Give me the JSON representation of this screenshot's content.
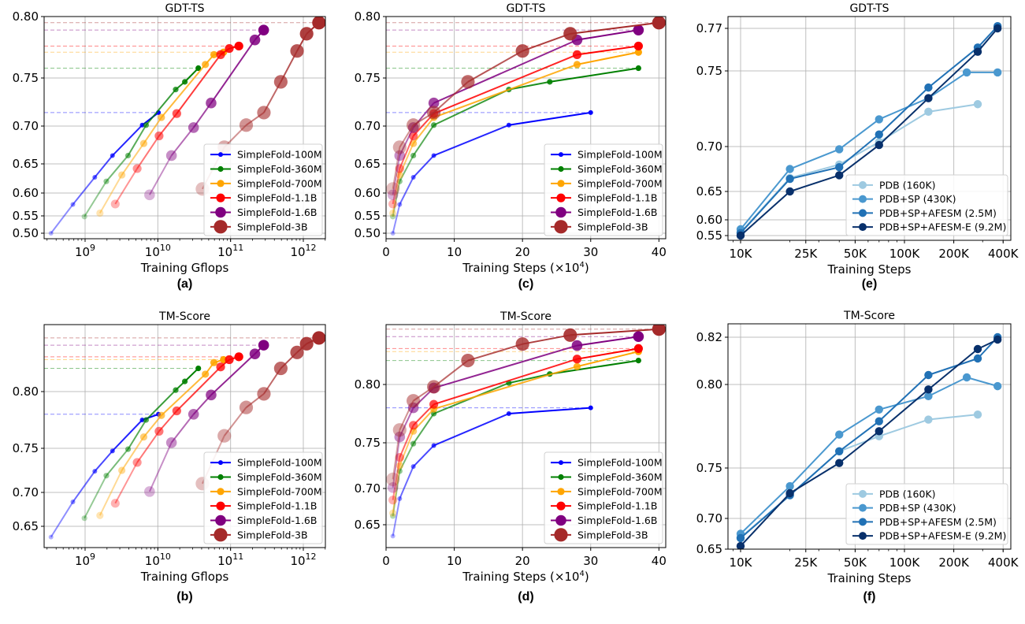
{
  "chart_data": [
    {
      "id": "a",
      "type": "line",
      "title": "GDT-TS",
      "xlabel": "Training Gflops",
      "ylabel": "",
      "panel_label": "(a)",
      "xscale": "log",
      "xlim": [
        250000000.0,
        2000000000000.0
      ],
      "xticks": [
        1000000000.0,
        10000000000.0,
        100000000000.0,
        1000000000000.0
      ],
      "xtick_labels": [
        "10^9",
        "10^10",
        "10^11",
        "10^12"
      ],
      "yticks": [
        0.5,
        0.55,
        0.6,
        0.65,
        0.7,
        0.75,
        0.8
      ],
      "ytick_labels": [
        "0.50",
        "0.55",
        "0.60",
        "0.65",
        "0.70",
        "0.75",
        "0.80"
      ],
      "ylim": [
        0.49,
        0.8
      ],
      "grid": true,
      "legend": "bottom-right",
      "reference_lines": "dashed horizontal line at each series' final value",
      "series": [
        {
          "name": "SimpleFold-100M",
          "color": "#0000ff",
          "x": [
            340000000.0,
            680000000.0,
            1360000000.0,
            2380000000.0,
            6100000000.0,
            10200000000.0
          ],
          "y": [
            0.5,
            0.575,
            0.627,
            0.661,
            0.701,
            0.714
          ]
        },
        {
          "name": "SimpleFold-360M",
          "color": "#008000",
          "x": [
            980000000.0,
            1960000000.0,
            3900000000.0,
            6900000000.0,
            17600000000.0,
            23500000000.0,
            36000000000.0
          ],
          "y": [
            0.548,
            0.62,
            0.661,
            0.701,
            0.738,
            0.746,
            0.758
          ]
        },
        {
          "name": "SimpleFold-700M",
          "color": "#ffa500",
          "x": [
            1600000000.0,
            3200000000.0,
            6400000000.0,
            11200000000.0,
            45000000000.0,
            59000000000.0,
            80000000000.0
          ],
          "y": [
            0.556,
            0.631,
            0.677,
            0.709,
            0.761,
            0.769,
            0.771
          ]
        },
        {
          "name": "SimpleFold-1.1B",
          "color": "#ff0000",
          "x": [
            2600000000.0,
            5200000000.0,
            10400000000.0,
            18200000000.0,
            73000000000.0,
            96000000000.0,
            130000000000.0
          ],
          "y": [
            0.576,
            0.642,
            0.687,
            0.713,
            0.769,
            0.774,
            0.776
          ]
        },
        {
          "name": "SimpleFold-1.6B",
          "color": "#800080",
          "x": [
            7700000000.0,
            15400000000.0,
            31000000000.0,
            54000000000.0,
            216000000000.0,
            285000000000.0
          ],
          "y": [
            0.596,
            0.661,
            0.698,
            0.724,
            0.781,
            0.789
          ]
        },
        {
          "name": "SimpleFold-3B",
          "color": "#a52a2a",
          "x": [
            41000000000.0,
            82000000000.0,
            164000000000.0,
            287000000000.0,
            490000000000.0,
            820000000000.0,
            1110000000000.0,
            1640000000000.0
          ],
          "y": [
            0.607,
            0.672,
            0.701,
            0.714,
            0.746,
            0.772,
            0.786,
            0.795
          ]
        }
      ]
    },
    {
      "id": "c",
      "type": "line",
      "title": "GDT-TS",
      "xlabel": "Training Steps (×10",
      "xlabel_sup": "4",
      "xlabel_tail": ")",
      "ylabel": "",
      "panel_label": "(c)",
      "xscale": "linear",
      "xlim": [
        0,
        41
      ],
      "xticks": [
        0,
        10,
        20,
        30,
        40
      ],
      "xtick_labels": [
        "0",
        "10",
        "20",
        "30",
        "40"
      ],
      "yticks": [
        0.5,
        0.55,
        0.6,
        0.65,
        0.7,
        0.75,
        0.8
      ],
      "ytick_labels": [
        "0.50",
        "0.55",
        "0.60",
        "0.65",
        "0.70",
        "0.75",
        "0.80"
      ],
      "ylim": [
        0.49,
        0.8
      ],
      "grid": true,
      "legend": "bottom-right",
      "series": [
        {
          "name": "SimpleFold-100M",
          "color": "#0000ff",
          "x": [
            1,
            2,
            4,
            7,
            18,
            30
          ],
          "y": [
            0.5,
            0.575,
            0.627,
            0.661,
            0.701,
            0.714
          ]
        },
        {
          "name": "SimpleFold-360M",
          "color": "#008000",
          "x": [
            1,
            2,
            4,
            7,
            18,
            24,
            37
          ],
          "y": [
            0.548,
            0.62,
            0.661,
            0.701,
            0.738,
            0.746,
            0.758
          ]
        },
        {
          "name": "SimpleFold-700M",
          "color": "#ffa500",
          "x": [
            1,
            2,
            4,
            7,
            28,
            37
          ],
          "y": [
            0.556,
            0.631,
            0.677,
            0.709,
            0.761,
            0.771
          ]
        },
        {
          "name": "SimpleFold-1.1B",
          "color": "#ff0000",
          "x": [
            1,
            2,
            4,
            7,
            28,
            37
          ],
          "y": [
            0.576,
            0.642,
            0.687,
            0.713,
            0.769,
            0.776
          ]
        },
        {
          "name": "SimpleFold-1.6B",
          "color": "#800080",
          "x": [
            1,
            2,
            4,
            7,
            28,
            37
          ],
          "y": [
            0.596,
            0.661,
            0.698,
            0.724,
            0.781,
            0.789
          ]
        },
        {
          "name": "SimpleFold-3B",
          "color": "#a52a2a",
          "x": [
            1,
            2,
            4,
            7,
            12,
            20,
            27,
            40
          ],
          "y": [
            0.607,
            0.672,
            0.701,
            0.714,
            0.746,
            0.772,
            0.786,
            0.795
          ]
        }
      ]
    },
    {
      "id": "e",
      "type": "line",
      "title": "GDT-TS",
      "xlabel": "Training Steps",
      "ylabel": "",
      "panel_label": "(e)",
      "xscale": "log",
      "xlim": [
        8500,
        420000
      ],
      "xticks": [
        10000,
        25000,
        50000,
        100000,
        200000,
        400000
      ],
      "xtick_labels": [
        "10K",
        "25K",
        "50K",
        "100K",
        "200K",
        "400K"
      ],
      "yticks": [
        0.55,
        0.6,
        0.65,
        0.7,
        0.75,
        0.77
      ],
      "ytick_labels": [
        "0.55",
        "0.60",
        "0.65",
        "0.70",
        "0.75",
        "0.77"
      ],
      "ylim": [
        0.545,
        0.775
      ],
      "grid": true,
      "legend": "bottom-right",
      "series": [
        {
          "name": "PDB (160K)",
          "color": "#9ecae1",
          "x": [
            10000,
            20000,
            40000,
            70000,
            140000,
            280000
          ],
          "y": [
            0.56,
            0.665,
            0.68,
            0.703,
            0.723,
            0.728
          ]
        },
        {
          "name": "PDB+SP (430K)",
          "color": "#4a98cf",
          "x": [
            10000,
            20000,
            40000,
            70000,
            140000,
            240000,
            370000
          ],
          "y": [
            0.57,
            0.675,
            0.697,
            0.718,
            0.732,
            0.749,
            0.749
          ]
        },
        {
          "name": "PDB+SP+AFESM (2.5M)",
          "color": "#2171b5",
          "x": [
            10000,
            20000,
            40000,
            70000,
            140000,
            280000,
            370000
          ],
          "y": [
            0.558,
            0.664,
            0.677,
            0.708,
            0.739,
            0.761,
            0.771
          ]
        },
        {
          "name": "PDB+SP+AFESM-E (9.2M)",
          "color": "#08306b",
          "x": [
            10000,
            20000,
            40000,
            70000,
            140000,
            280000,
            370000
          ],
          "y": [
            0.55,
            0.65,
            0.668,
            0.701,
            0.732,
            0.759,
            0.77
          ]
        }
      ]
    },
    {
      "id": "b",
      "type": "line",
      "title": "TM-Score",
      "xlabel": "Training Gflops",
      "ylabel": "",
      "panel_label": "(b)",
      "xscale": "log",
      "xlim": [
        250000000.0,
        2000000000000.0
      ],
      "xticks": [
        1000000000.0,
        10000000000.0,
        100000000000.0,
        1000000000000.0
      ],
      "xtick_labels": [
        "10^9",
        "10^10",
        "10^11",
        "10^12"
      ],
      "yticks": [
        0.65,
        0.7,
        0.75,
        0.8
      ],
      "ytick_labels": [
        "0.65",
        "0.70",
        "0.75",
        "0.80"
      ],
      "ylim": [
        0.625,
        0.845
      ],
      "grid": true,
      "legend": "bottom-right",
      "series": [
        {
          "name": "SimpleFold-100M",
          "color": "#0000ff",
          "x": [
            340000000.0,
            680000000.0,
            1360000000.0,
            2380000000.0,
            6100000000.0,
            10200000000.0
          ],
          "y": [
            0.63,
            0.686,
            0.724,
            0.747,
            0.775,
            0.78
          ]
        },
        {
          "name": "SimpleFold-360M",
          "color": "#008000",
          "x": [
            980000000.0,
            1960000000.0,
            3900000000.0,
            6900000000.0,
            17600000000.0,
            23500000000.0,
            36000000000.0
          ],
          "y": [
            0.662,
            0.719,
            0.749,
            0.775,
            0.801,
            0.807,
            0.816
          ]
        },
        {
          "name": "SimpleFold-700M",
          "color": "#ffa500",
          "x": [
            1600000000.0,
            3200000000.0,
            6400000000.0,
            11200000000.0,
            45000000000.0,
            59000000000.0,
            80000000000.0
          ],
          "y": [
            0.666,
            0.725,
            0.76,
            0.779,
            0.812,
            0.82,
            0.822
          ]
        },
        {
          "name": "SimpleFold-1.1B",
          "color": "#ff0000",
          "x": [
            2600000000.0,
            5200000000.0,
            10400000000.0,
            18200000000.0,
            73000000000.0,
            96000000000.0,
            130000000000.0
          ],
          "y": [
            0.684,
            0.734,
            0.765,
            0.783,
            0.817,
            0.822,
            0.824
          ]
        },
        {
          "name": "SimpleFold-1.6B",
          "color": "#800080",
          "x": [
            7700000000.0,
            15400000000.0,
            31000000000.0,
            54000000000.0,
            216000000000.0,
            285000000000.0
          ],
          "y": [
            0.701,
            0.755,
            0.78,
            0.797,
            0.826,
            0.832
          ]
        },
        {
          "name": "SimpleFold-3B",
          "color": "#a52a2a",
          "x": [
            41000000000.0,
            82000000000.0,
            164000000000.0,
            287000000000.0,
            490000000000.0,
            820000000000.0,
            1110000000000.0,
            1640000000000.0
          ],
          "y": [
            0.71,
            0.761,
            0.786,
            0.798,
            0.816,
            0.827,
            0.833,
            0.837
          ]
        }
      ]
    },
    {
      "id": "d",
      "type": "line",
      "title": "TM-Score",
      "xlabel": "Training Steps (×10",
      "xlabel_sup": "4",
      "xlabel_tail": ")",
      "ylabel": "",
      "panel_label": "(d)",
      "xscale": "linear",
      "xlim": [
        0,
        41
      ],
      "xticks": [
        0,
        10,
        20,
        30,
        40
      ],
      "xtick_labels": [
        "0",
        "10",
        "20",
        "30",
        "40"
      ],
      "yticks": [
        0.65,
        0.7,
        0.75,
        0.8
      ],
      "ytick_labels": [
        "0.65",
        "0.70",
        "0.75",
        "0.80"
      ],
      "ylim": [
        0.62,
        0.84
      ],
      "grid": true,
      "legend": "bottom-right",
      "series": [
        {
          "name": "SimpleFold-100M",
          "color": "#0000ff",
          "x": [
            1,
            2,
            4,
            7,
            18,
            30
          ],
          "y": [
            0.63,
            0.686,
            0.724,
            0.747,
            0.775,
            0.78
          ]
        },
        {
          "name": "SimpleFold-360M",
          "color": "#008000",
          "x": [
            1,
            2,
            4,
            7,
            18,
            24,
            37
          ],
          "y": [
            0.662,
            0.719,
            0.749,
            0.775,
            0.801,
            0.807,
            0.816
          ]
        },
        {
          "name": "SimpleFold-700M",
          "color": "#ffa500",
          "x": [
            1,
            2,
            4,
            7,
            28,
            37
          ],
          "y": [
            0.666,
            0.725,
            0.76,
            0.779,
            0.812,
            0.822
          ]
        },
        {
          "name": "SimpleFold-1.1B",
          "color": "#ff0000",
          "x": [
            1,
            2,
            4,
            7,
            28,
            37
          ],
          "y": [
            0.684,
            0.734,
            0.765,
            0.783,
            0.817,
            0.824
          ]
        },
        {
          "name": "SimpleFold-1.6B",
          "color": "#800080",
          "x": [
            1,
            2,
            4,
            7,
            28,
            37
          ],
          "y": [
            0.701,
            0.755,
            0.78,
            0.797,
            0.826,
            0.832
          ]
        },
        {
          "name": "SimpleFold-3B",
          "color": "#a52a2a",
          "x": [
            1,
            2,
            4,
            7,
            12,
            20,
            27,
            40
          ],
          "y": [
            0.71,
            0.761,
            0.786,
            0.798,
            0.816,
            0.827,
            0.833,
            0.837
          ]
        }
      ]
    },
    {
      "id": "f",
      "type": "line",
      "title": "TM-Score",
      "xlabel": "Training Steps",
      "ylabel": "",
      "panel_label": "(f)",
      "xscale": "log",
      "xlim": [
        8500,
        420000
      ],
      "xticks": [
        10000,
        25000,
        50000,
        100000,
        200000,
        400000
      ],
      "xtick_labels": [
        "10K",
        "25K",
        "50K",
        "100K",
        "200K",
        "400K"
      ],
      "yticks": [
        0.65,
        0.7,
        0.75,
        0.8,
        0.82
      ],
      "ytick_labels": [
        "0.65",
        "0.70",
        "0.75",
        "0.80",
        "0.82"
      ],
      "ylim": [
        0.65,
        0.825
      ],
      "grid": true,
      "legend": "bottom-right",
      "series": [
        {
          "name": "PDB (160K)",
          "color": "#9ecae1",
          "x": [
            10000,
            20000,
            40000,
            70000,
            140000,
            280000
          ],
          "y": [
            0.669,
            0.723,
            0.76,
            0.769,
            0.779,
            0.782
          ]
        },
        {
          "name": "PDB+SP (430K)",
          "color": "#4a98cf",
          "x": [
            10000,
            20000,
            40000,
            70000,
            140000,
            240000,
            370000
          ],
          "y": [
            0.675,
            0.732,
            0.77,
            0.785,
            0.793,
            0.803,
            0.799
          ]
        },
        {
          "name": "PDB+SP+AFESM (2.5M)",
          "color": "#2171b5",
          "x": [
            10000,
            20000,
            40000,
            70000,
            140000,
            280000,
            370000
          ],
          "y": [
            0.668,
            0.723,
            0.76,
            0.778,
            0.804,
            0.811,
            0.82
          ]
        },
        {
          "name": "PDB+SP+AFESM-E (9.2M)",
          "color": "#08306b",
          "x": [
            10000,
            20000,
            40000,
            70000,
            140000,
            280000,
            370000
          ],
          "y": [
            0.655,
            0.725,
            0.753,
            0.772,
            0.797,
            0.815,
            0.819
          ]
        }
      ]
    }
  ]
}
